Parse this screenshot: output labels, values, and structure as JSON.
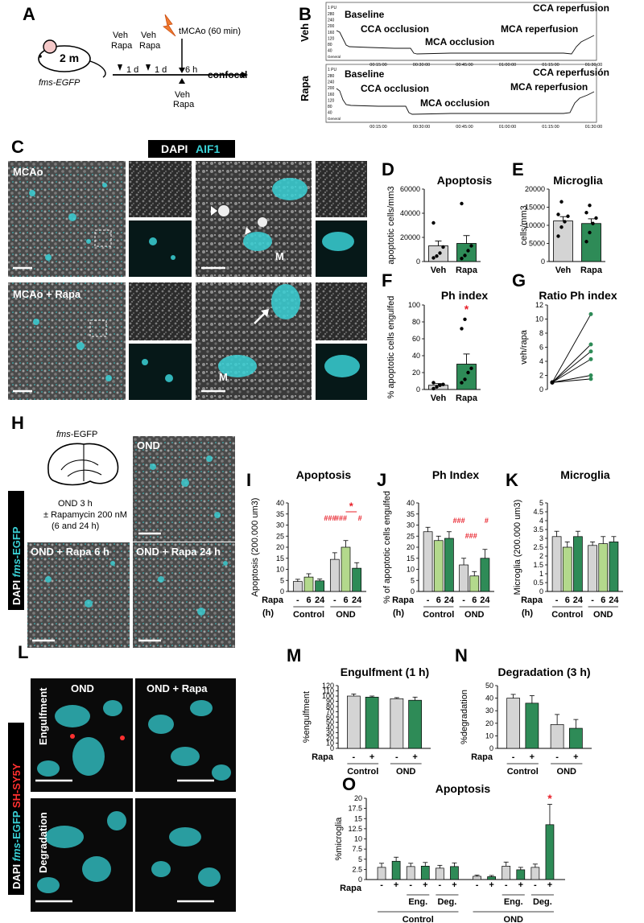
{
  "panel_letters": [
    "A",
    "B",
    "C",
    "D",
    "E",
    "F",
    "G",
    "H",
    "I",
    "J",
    "K",
    "L",
    "M",
    "N",
    "O"
  ],
  "panelA": {
    "mouse_age": "2 m",
    "strain": "fms-EGFP",
    "steps": [
      "Veh Rapa",
      "Veh Rapa",
      "Veh Rapa"
    ],
    "veh": "Veh",
    "rapa": "Rapa",
    "interval1": "1 d",
    "interval2": "1 d",
    "interval3": "6 h",
    "surgery": "tMCAo (60 min)",
    "endpoint": "confocal"
  },
  "panelB": {
    "veh_label": "Veh",
    "rapa_label": "Rapa",
    "unit": "1 PU",
    "yticks": [
      "280",
      "240",
      "200",
      "160",
      "120",
      "80",
      "40"
    ],
    "general": "General",
    "times": [
      "00:15:00",
      "00:30:00",
      "00:45:00",
      "01:00:00",
      "01:15:00",
      "01:30:00"
    ],
    "events_veh": [
      "Baseline",
      "CCA occlusion",
      "MCA occlusion",
      "MCA reperfusion",
      "CCA reperfusion"
    ],
    "events_rapa": [
      "Baseline",
      "CCA occlusion",
      "MCA occlusion",
      "MCA reperfusion",
      "CCA reperfusión"
    ]
  },
  "panelC": {
    "header_dapi": "DAPI",
    "header_aif1": "AIF1",
    "row1": "MCAo",
    "row2": "MCAo + Rapa",
    "marker_m": "M"
  },
  "panelH": {
    "strain_italic": "fms",
    "strain_rest": "-EGFP",
    "protocol": [
      "OND 3 h",
      "± Rapamycin 200 nM",
      "(6 and 24 h)"
    ],
    "img1": "OND",
    "img2": "OND + Rapa 6 h",
    "img3": "OND + Rapa 24 h",
    "side_dapi": "DAPI ",
    "side_fms": "fms",
    "side_egfp": "-EGFP"
  },
  "panelL": {
    "col1": "OND",
    "col2": "OND + Rapa",
    "row1": "Engulfment",
    "row2": "Degradation",
    "side_dapi": "DAPI ",
    "side_fms": "fms",
    "side_egfp": "-EGFP",
    "side_sh": " SH-SY5Y"
  },
  "colors": {
    "veh": "#d4d4d4",
    "rapa": "#2e8b57",
    "rapa6": "#b3d98c",
    "rapa24": "#2e8b57",
    "sig": "#e8202a",
    "cyan": "#3ad1d6"
  },
  "chart_data": [
    {
      "id": "D",
      "type": "bar",
      "title": "Apoptosis",
      "ylabel": "apoptotic cells/mm3",
      "ylim": [
        0,
        60000
      ],
      "yticks": [
        0,
        20000,
        40000,
        60000
      ],
      "categories": [
        "Veh",
        "Rapa"
      ],
      "values": [
        13000,
        15000
      ],
      "errors": [
        4000,
        6500
      ],
      "points": [
        [
          3000,
          4500,
          7000,
          12000,
          32000
        ],
        [
          2500,
          5000,
          9000,
          13000,
          48000
        ]
      ]
    },
    {
      "id": "E",
      "type": "bar",
      "title": "Microglia",
      "ylabel": "cells/mm3",
      "ylim": [
        0,
        20000
      ],
      "yticks": [
        0,
        5000,
        10000,
        15000,
        20000
      ],
      "categories": [
        "Veh",
        "Rapa"
      ],
      "values": [
        11200,
        10500
      ],
      "errors": [
        1200,
        1300
      ],
      "points": [
        [
          7000,
          9500,
          11000,
          12500,
          13000,
          16500
        ],
        [
          5500,
          8000,
          10500,
          12000,
          13500,
          15500
        ]
      ]
    },
    {
      "id": "F",
      "type": "bar",
      "title": "Ph index",
      "ylabel": "% apoptotic cells engulfed",
      "ylim": [
        0,
        100
      ],
      "yticks": [
        0,
        20,
        40,
        60,
        80,
        100
      ],
      "categories": [
        "Veh",
        "Rapa"
      ],
      "values": [
        5,
        30
      ],
      "errors": [
        2,
        12
      ],
      "points": [
        [
          1,
          3,
          5,
          6,
          8
        ],
        [
          8,
          12,
          20,
          25,
          72,
          83
        ]
      ],
      "significance": "*"
    },
    {
      "id": "G",
      "type": "line",
      "title": "Ratio Ph index",
      "ylabel": "veh/rapa",
      "ylim": [
        0,
        12
      ],
      "yticks": [
        0,
        2,
        4,
        6,
        8,
        10,
        12
      ],
      "x": [
        0,
        1
      ],
      "series": [
        {
          "values": [
            1,
            10.7
          ]
        },
        {
          "values": [
            1,
            6.4
          ]
        },
        {
          "values": [
            1,
            5.4
          ]
        },
        {
          "values": [
            1,
            4.3
          ]
        },
        {
          "values": [
            1,
            2
          ]
        },
        {
          "values": [
            1,
            1.5
          ]
        }
      ]
    },
    {
      "id": "I",
      "type": "bar",
      "title": "Apoptosis",
      "ylabel": "Apoptosis (200.000 um3)",
      "ylim": [
        0,
        40
      ],
      "yticks": [
        0,
        5,
        10,
        15,
        20,
        25,
        30,
        35,
        40
      ],
      "categories": [
        "-",
        "6",
        "24",
        "-",
        "6",
        "24"
      ],
      "groups": [
        "Control",
        "OND"
      ],
      "xlabel": "Rapa (h)",
      "values": [
        4.5,
        6.5,
        4.8,
        14.5,
        20,
        10.5
      ],
      "errors": [
        1,
        1.5,
        0.8,
        3,
        3,
        2.5
      ],
      "sig_labels": [
        "###",
        "###",
        "#",
        "*"
      ]
    },
    {
      "id": "J",
      "type": "bar",
      "title": "Ph Index",
      "ylabel": "% of apoptotic cells engulfed",
      "ylim": [
        0,
        40
      ],
      "yticks": [
        0,
        5,
        10,
        15,
        20,
        25,
        30,
        35,
        40
      ],
      "categories": [
        "-",
        "6",
        "24",
        "-",
        "6",
        "24"
      ],
      "groups": [
        "Control",
        "OND"
      ],
      "xlabel": "Rapa (h)",
      "values": [
        27,
        23,
        24,
        12,
        7,
        15
      ],
      "errors": [
        2,
        2,
        3,
        3,
        2,
        4
      ],
      "sig_labels": [
        "###",
        "###",
        "#"
      ]
    },
    {
      "id": "K",
      "type": "bar",
      "title": "Microglia",
      "ylabel": "Microglia (200.000 um3)",
      "ylim": [
        0,
        5
      ],
      "yticks": [
        0,
        0.5,
        1,
        1.5,
        2,
        2.5,
        3,
        3.5,
        4,
        4.5,
        5
      ],
      "categories": [
        "-",
        "6",
        "24",
        "-",
        "6",
        "24"
      ],
      "groups": [
        "Control",
        "OND"
      ],
      "xlabel": "Rapa (h)",
      "values": [
        3.1,
        2.5,
        3.1,
        2.6,
        2.7,
        2.8
      ],
      "errors": [
        0.3,
        0.3,
        0.3,
        0.2,
        0.4,
        0.3
      ]
    },
    {
      "id": "M",
      "type": "bar",
      "title": "Engulfment (1 h)",
      "ylabel": "%engulfment",
      "ylim": [
        0,
        120
      ],
      "yticks": [
        0,
        10,
        20,
        30,
        40,
        50,
        60,
        70,
        80,
        90,
        100,
        110,
        120
      ],
      "categories": [
        "-",
        "+",
        "-",
        "+"
      ],
      "groups": [
        "Control",
        "OND"
      ],
      "xlabel": "Rapa",
      "values": [
        100,
        98,
        95,
        92
      ],
      "errors": [
        4,
        2,
        2,
        6
      ]
    },
    {
      "id": "N",
      "type": "bar",
      "title": "Degradation (3 h)",
      "ylabel": "%degradation",
      "ylim": [
        0,
        50
      ],
      "yticks": [
        0,
        10,
        20,
        30,
        40,
        50
      ],
      "categories": [
        "-",
        "+",
        "-",
        "+"
      ],
      "groups": [
        "Control",
        "OND"
      ],
      "xlabel": "Rapa",
      "values": [
        40,
        36,
        19,
        16
      ],
      "errors": [
        3,
        6,
        8,
        7
      ]
    },
    {
      "id": "O",
      "type": "bar",
      "title": "Apoptosis",
      "ylabel": "%microglia",
      "ylim": [
        0,
        20
      ],
      "yticks": [
        0,
        2.5,
        5,
        7.5,
        10,
        12.5,
        15,
        17.5,
        20
      ],
      "categories": [
        "-",
        "+",
        "-",
        "+",
        "-",
        "+",
        "-",
        "+",
        "-",
        "+",
        "-",
        "+"
      ],
      "subgroups": [
        "",
        "Eng.",
        "Deg.",
        "",
        "Eng.",
        "Deg."
      ],
      "groups": [
        "Control",
        "OND"
      ],
      "xlabel": "Rapa",
      "values": [
        3,
        4.5,
        3.2,
        3.3,
        2.8,
        3.2,
        0.8,
        0.7,
        3.3,
        2.4,
        3,
        13.5
      ],
      "errors": [
        1,
        1,
        0.8,
        0.9,
        0.7,
        0.9,
        0.3,
        0.3,
        1,
        0.6,
        0.8,
        5
      ],
      "significance": "*"
    }
  ]
}
